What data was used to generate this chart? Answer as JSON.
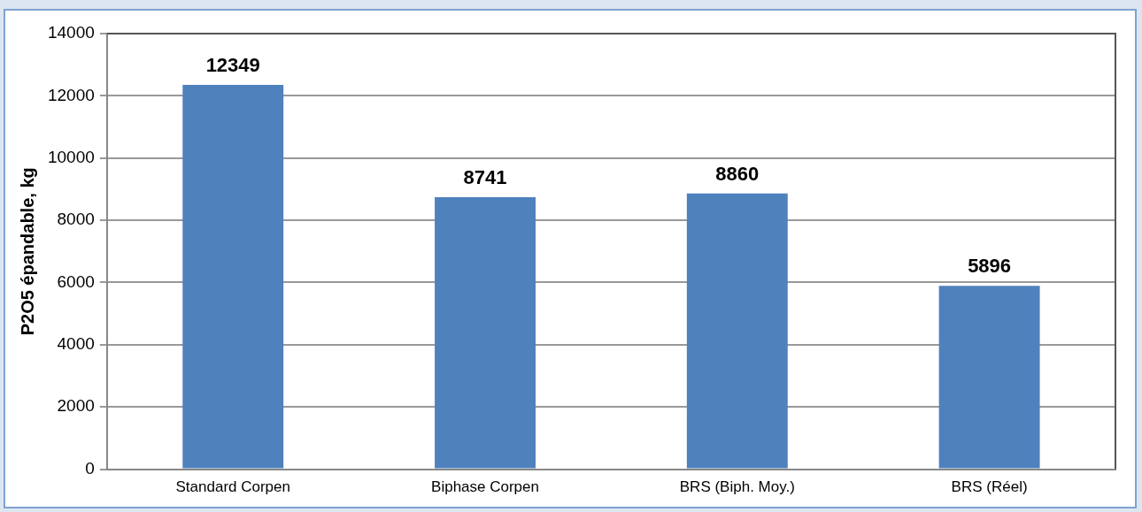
{
  "chart_data": {
    "type": "bar",
    "ylabel": "P2O5 épandable, kg",
    "categories": [
      "Standard Corpen",
      "Biphase Corpen",
      "BRS (Biph. Moy.)",
      "BRS (Réel)"
    ],
    "values": [
      12349,
      8741,
      8860,
      5896
    ],
    "color": "#4f81bd",
    "ylim": [
      0,
      14000
    ],
    "yticks": [
      0,
      2000,
      4000,
      6000,
      8000,
      10000,
      12000,
      14000
    ],
    "grid": "y",
    "data_labels": true,
    "legend": false
  }
}
